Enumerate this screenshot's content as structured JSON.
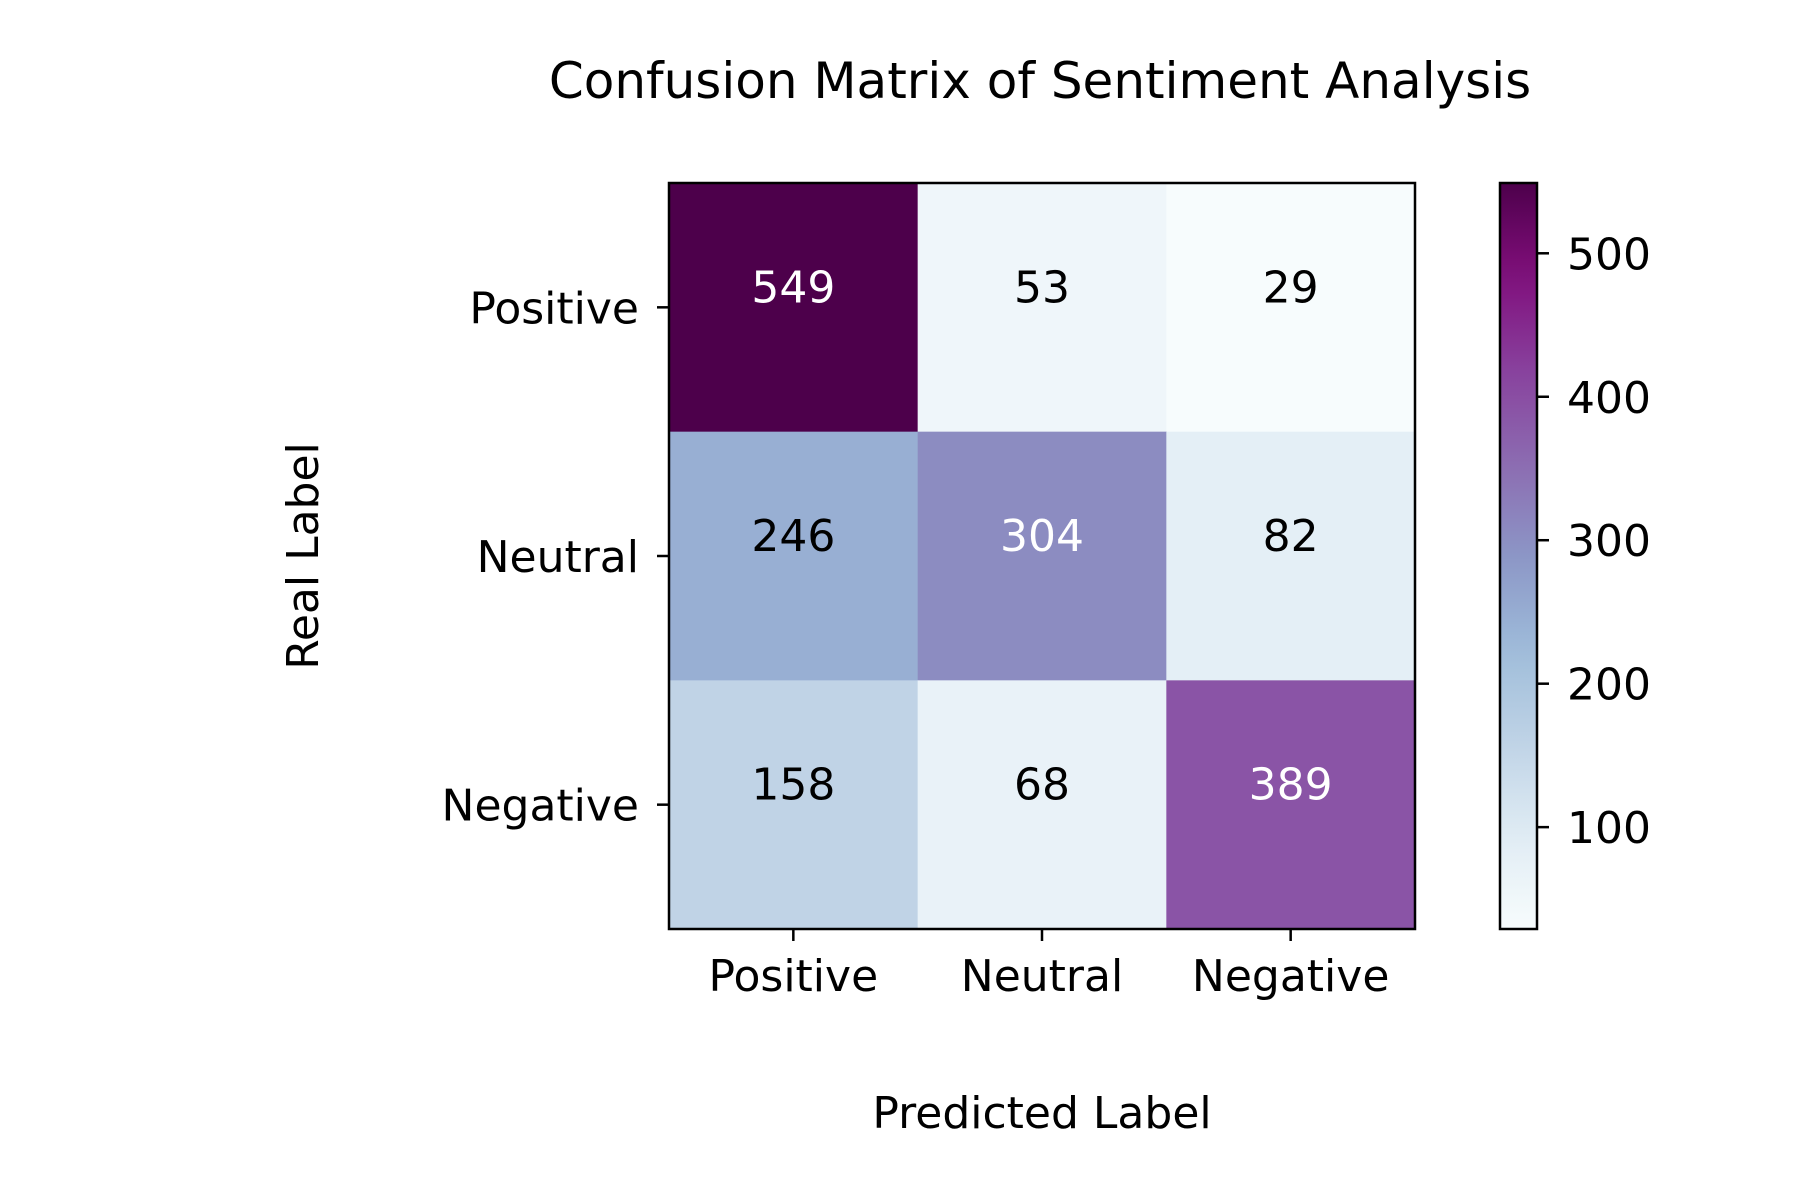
{
  "chart_data": {
    "type": "heatmap",
    "title": "Confusion Matrix of Sentiment Analysis",
    "xlabel": "Predicted Label",
    "ylabel": "Real Label",
    "x_categories": [
      "Positive",
      "Neutral",
      "Negative"
    ],
    "y_categories": [
      "Positive",
      "Neutral",
      "Negative"
    ],
    "values": [
      [
        549,
        53,
        29
      ],
      [
        246,
        304,
        82
      ],
      [
        158,
        68,
        389
      ]
    ],
    "colormap": "BuPu",
    "colorbar": {
      "range": [
        29,
        549
      ],
      "ticks": [
        "100",
        "200",
        "300",
        "400",
        "500"
      ]
    },
    "grid": false
  }
}
